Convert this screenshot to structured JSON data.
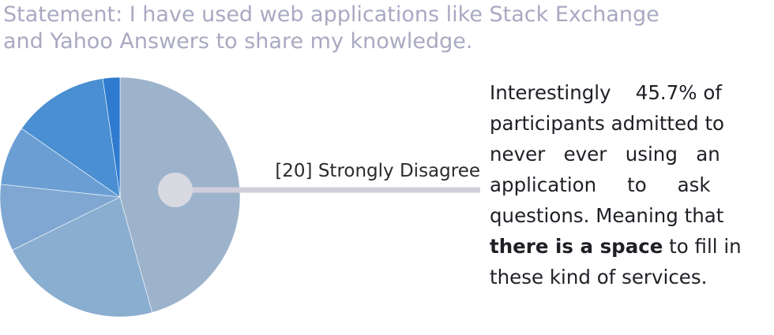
{
  "statement": {
    "line1": "Statement: I have used web applications like Stack Exchange",
    "line2": "and Yahoo Answers to share my knowledge."
  },
  "chart_data": {
    "type": "pie",
    "title": "Statement: I have used web applications like Stack Exchange and Yahoo Answers to share my knowledge.",
    "slices": [
      {
        "value": 45.7,
        "color": "#9cb3cb"
      },
      {
        "value": 22.0,
        "color": "#8aaed0"
      },
      {
        "value": 9.0,
        "color": "#7fa7d2"
      },
      {
        "value": 8.0,
        "color": "#6b9fd4"
      },
      {
        "value": 13.0,
        "color": "#4a8fd1"
      },
      {
        "value": 2.3,
        "color": "#2f7bd0"
      }
    ],
    "annotations": [
      {
        "slice": 0,
        "text": "[20] Strongly Disagree"
      }
    ]
  },
  "note": {
    "lines": [
      "Interestingly    45.7% of",
      "participants admitted to",
      "never   ever   using   an",
      "application     to     ask",
      "questions. Meaning that"
    ],
    "bold": "there is a space",
    "after_bold": " to fill in",
    "last_line": "these kind of services."
  },
  "colors": {
    "statement": "#a9a9c2",
    "callout": "#cfcfdc",
    "text": "#1f1f26"
  }
}
